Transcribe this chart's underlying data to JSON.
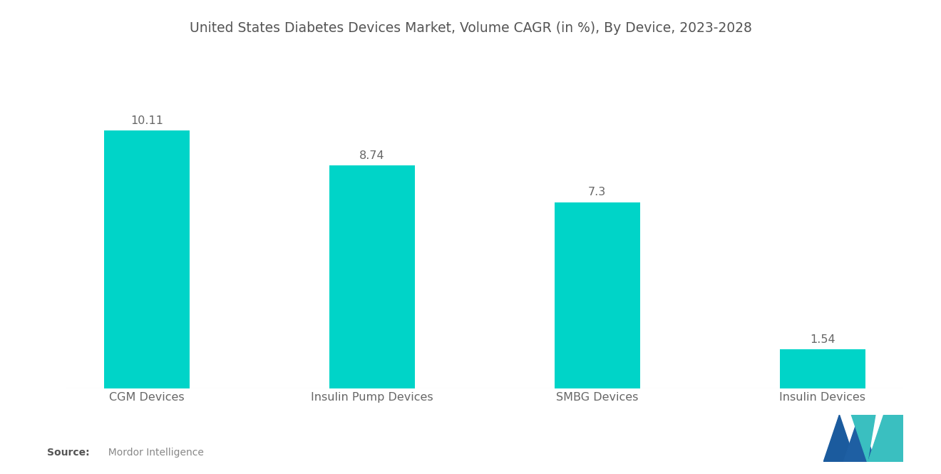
{
  "title": "United States Diabetes Devices Market, Volume CAGR (in %), By Device, 2023-2028",
  "categories": [
    "CGM Devices",
    "Insulin Pump Devices",
    "SMBG Devices",
    "Insulin Devices"
  ],
  "values": [
    10.11,
    8.74,
    7.3,
    1.54
  ],
  "bar_color": "#00D4C8",
  "background_color": "#ffffff",
  "title_fontsize": 13.5,
  "label_fontsize": 11.5,
  "value_fontsize": 11.5,
  "source_bold": "Source:",
  "source_text": "  Mordor Intelligence",
  "ylim": [
    0,
    13
  ],
  "bar_width": 0.38,
  "title_color": "#555555",
  "label_color": "#666666",
  "value_color": "#666666"
}
